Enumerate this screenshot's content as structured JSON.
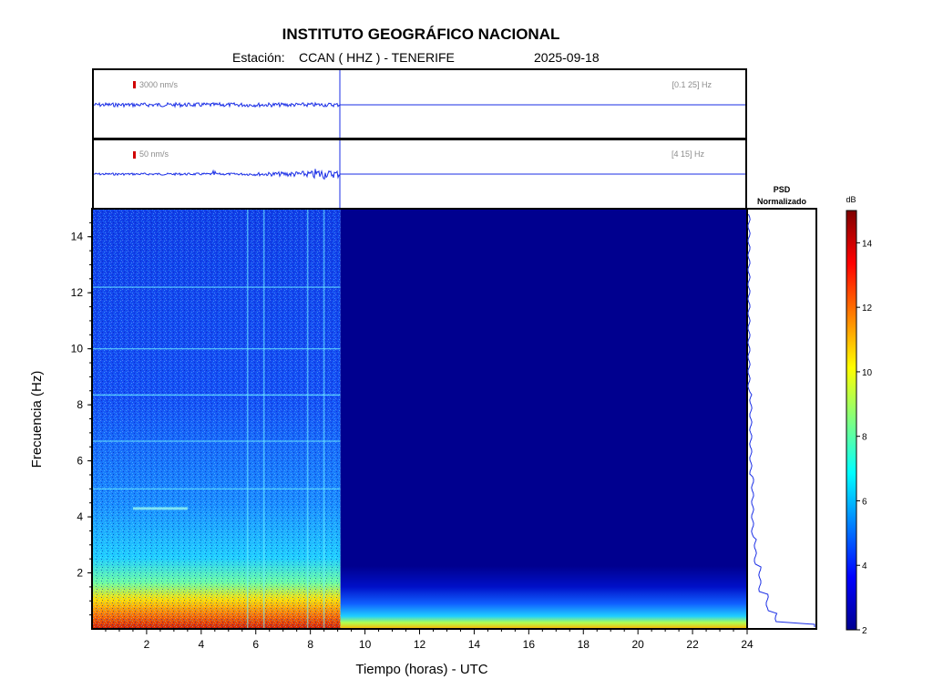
{
  "header": {
    "institution": "INSTITUTO GEOGRÁFICO NACIONAL",
    "station_label": "Estación:",
    "station": "CCAN ( HHZ ) - TENERIFE",
    "date": "2025-09-18"
  },
  "traces": [
    {
      "scale": "3000 nm/s",
      "band": "[0.1 25] Hz"
    },
    {
      "scale": "50 nm/s",
      "band": "[4 15] Hz"
    }
  ],
  "psd": {
    "title_line1": "PSD",
    "title_line2": "Normalizado"
  },
  "colorbar": {
    "unit": "dB",
    "ticks": [
      "2",
      "4",
      "6",
      "8",
      "10",
      "12",
      "14"
    ],
    "range": [
      2,
      15
    ]
  },
  "colors": {
    "trace": "#1a2ee6",
    "low": "#00008f",
    "high": "#7f0000"
  },
  "chart_data": {
    "type": "heatmap",
    "title": "INSTITUTO GEOGRÁFICO NACIONAL",
    "xlabel": "Tiempo (horas) - UTC",
    "ylabel": "Frecuencia  (Hz)",
    "xlim": [
      0,
      24
    ],
    "ylim": [
      0,
      15
    ],
    "x_ticks": [
      "2",
      "4",
      "6",
      "8",
      "10",
      "12",
      "14",
      "16",
      "18",
      "20",
      "22",
      "24"
    ],
    "y_ticks": [
      "2",
      "4",
      "6",
      "8",
      "10",
      "12",
      "14"
    ],
    "data_end_hour": 9.1,
    "colorscale": "jet",
    "z_unit": "dB",
    "zlim": [
      2,
      15
    ],
    "features": {
      "horizontal_lines_hz": [
        5.0,
        6.7,
        8.35,
        10.0,
        12.2
      ],
      "vertical_lines_hours": [
        5.7,
        6.3,
        7.9,
        8.5
      ],
      "tremor_band": {
        "hz": 4.3,
        "hours": [
          1.5,
          3.5
        ]
      }
    }
  }
}
